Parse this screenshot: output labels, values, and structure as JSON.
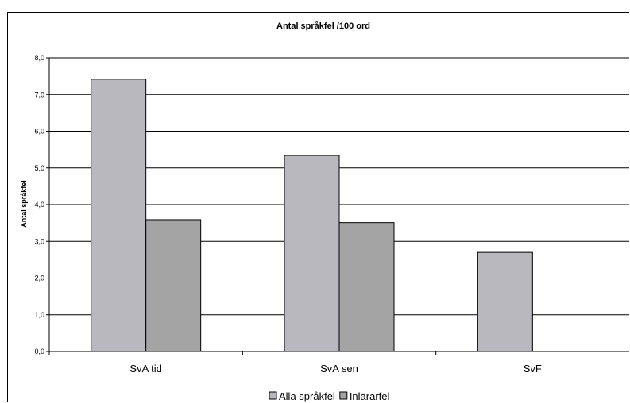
{
  "chart_data": {
    "type": "bar",
    "title": "Antal språkfel /100 ord",
    "xlabel": "",
    "ylabel": "Antal språkfel",
    "categories": [
      "SvA tid",
      "SvA sen",
      "SvF"
    ],
    "series": [
      {
        "name": "Alla språkfel",
        "values": [
          7.42,
          5.34,
          2.7
        ],
        "color": "#b8b8be"
      },
      {
        "name": "Inlärarfel",
        "values": [
          3.59,
          3.51,
          null
        ],
        "color": "#a4a4a4"
      }
    ],
    "ylim": [
      0,
      8
    ],
    "yticks": [
      "0,0",
      "1,0",
      "2,0",
      "3,0",
      "4,0",
      "5,0",
      "6,0",
      "7,0",
      "8,0"
    ],
    "grid": true,
    "legend": "bottom"
  }
}
